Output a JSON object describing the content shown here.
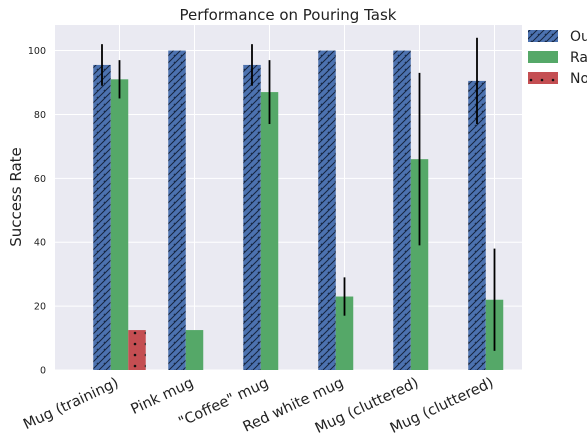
{
  "chart_data": {
    "type": "bar",
    "title": "Performance on Pouring Task",
    "xlabel": "",
    "ylabel": "Success Rate",
    "ylim": [
      0,
      108
    ],
    "yticks": [
      0,
      20,
      40,
      60,
      80,
      100
    ],
    "grid": true,
    "legend_position": "right",
    "categories": [
      "Mug (training)",
      "Pink mug",
      "\"Coffee\" mug",
      "Red white mug",
      "Mug (cluttered)",
      "Mug (cluttered)"
    ],
    "series": [
      {
        "name": "Ou",
        "color": "#4c72b0",
        "pattern": "hatch",
        "values": [
          95.5,
          100,
          95.5,
          100,
          100,
          90.5
        ],
        "errors": [
          6.5,
          0,
          6.5,
          0,
          0,
          13.5
        ]
      },
      {
        "name": "Ra",
        "color": "#55a868",
        "pattern": "solid",
        "values": [
          91,
          12.5,
          87,
          23,
          66,
          22
        ],
        "errors": [
          6,
          0,
          10,
          6,
          27,
          16
        ]
      },
      {
        "name": "No",
        "color": "#c44e52",
        "pattern": "dots",
        "values": [
          12.5,
          0,
          0,
          0,
          0,
          0
        ],
        "errors": [
          0,
          0,
          0,
          0,
          0,
          0
        ]
      }
    ]
  }
}
